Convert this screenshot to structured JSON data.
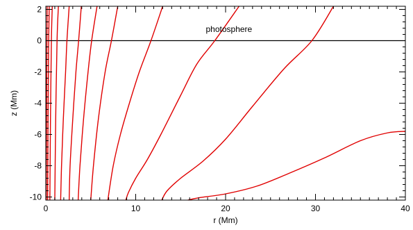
{
  "chart_data": {
    "type": "line",
    "xlabel": "r (Mm)",
    "ylabel": "z (Mm)",
    "xlim": [
      0,
      40
    ],
    "ylim": [
      -10.2,
      2.2
    ],
    "x_ticks": [
      0,
      10,
      20,
      30,
      40
    ],
    "y_ticks": [
      -10,
      -8,
      -6,
      -4,
      -2,
      0,
      2
    ],
    "x_tick_labels": [
      "0",
      "10",
      "20",
      "30",
      "40"
    ],
    "y_tick_labels": [
      "-10",
      "-8",
      "-6",
      "-4",
      "-2",
      "0",
      "2"
    ],
    "x_minor_step": 1,
    "y_minor_step": 0.4,
    "grid": false,
    "line_color": "#e00000",
    "reference_line": {
      "y": 0,
      "label": "photosphere",
      "label_x": 17.8,
      "label_y": 0.55,
      "color": "#000000"
    },
    "series": [
      {
        "points": [
          [
            0.05,
            -10.2
          ],
          [
            0.08,
            -5
          ],
          [
            0.12,
            0
          ],
          [
            0.15,
            2.2
          ]
        ]
      },
      {
        "points": [
          [
            0.2,
            -10.2
          ],
          [
            0.25,
            -5
          ],
          [
            0.32,
            0
          ],
          [
            0.38,
            2.2
          ]
        ]
      },
      {
        "points": [
          [
            0.45,
            -10.2
          ],
          [
            0.52,
            -5
          ],
          [
            0.62,
            0
          ],
          [
            0.72,
            2.2
          ]
        ]
      },
      {
        "points": [
          [
            1.0,
            -10.2
          ],
          [
            1.1,
            -5
          ],
          [
            1.25,
            0
          ],
          [
            1.4,
            2.2
          ]
        ]
      },
      {
        "points": [
          [
            1.65,
            -10.2
          ],
          [
            1.75,
            -8
          ],
          [
            1.95,
            -5
          ],
          [
            2.2,
            -2
          ],
          [
            2.35,
            0
          ],
          [
            2.6,
            2.2
          ]
        ]
      },
      {
        "points": [
          [
            2.6,
            -10.2
          ],
          [
            2.7,
            -8
          ],
          [
            3.0,
            -5
          ],
          [
            3.35,
            -2
          ],
          [
            3.65,
            0
          ],
          [
            3.95,
            2.2
          ]
        ]
      },
      {
        "points": [
          [
            3.6,
            -10.2
          ],
          [
            3.8,
            -8
          ],
          [
            4.2,
            -5
          ],
          [
            4.7,
            -2
          ],
          [
            5.1,
            0
          ],
          [
            5.7,
            2.2
          ]
        ]
      },
      {
        "points": [
          [
            5.0,
            -10.2
          ],
          [
            5.3,
            -8
          ],
          [
            5.85,
            -5
          ],
          [
            6.6,
            -2
          ],
          [
            7.3,
            0
          ],
          [
            8.0,
            2.2
          ]
        ]
      },
      {
        "points": [
          [
            6.9,
            -10.2
          ],
          [
            7.5,
            -8
          ],
          [
            8.3,
            -6
          ],
          [
            9.3,
            -4
          ],
          [
            10.4,
            -2
          ],
          [
            11.7,
            0
          ],
          [
            13.0,
            2.2
          ]
        ]
      },
      {
        "points": [
          [
            8.9,
            -10.2
          ],
          [
            9.2,
            -9.7
          ],
          [
            10.0,
            -8.8
          ],
          [
            11.3,
            -7.6
          ],
          [
            12.8,
            -6
          ],
          [
            15.0,
            -3.5
          ],
          [
            16.8,
            -1.5
          ],
          [
            18.8,
            0
          ],
          [
            21.5,
            2.2
          ]
        ]
      },
      {
        "points": [
          [
            12.9,
            -10.2
          ],
          [
            13.5,
            -9.6
          ],
          [
            15.0,
            -8.8
          ],
          [
            17.5,
            -7.7
          ],
          [
            20.0,
            -6.3
          ],
          [
            23.0,
            -4.2
          ],
          [
            26.5,
            -1.8
          ],
          [
            29.6,
            0
          ],
          [
            32.0,
            2.2
          ]
        ]
      },
      {
        "points": [
          [
            15.8,
            -10.2
          ],
          [
            17.0,
            -10.05
          ],
          [
            20.0,
            -9.8
          ],
          [
            23.5,
            -9.3
          ],
          [
            27.0,
            -8.5
          ],
          [
            31.0,
            -7.5
          ],
          [
            35.0,
            -6.4
          ],
          [
            38.0,
            -5.9
          ],
          [
            40.0,
            -5.8
          ]
        ]
      }
    ]
  }
}
